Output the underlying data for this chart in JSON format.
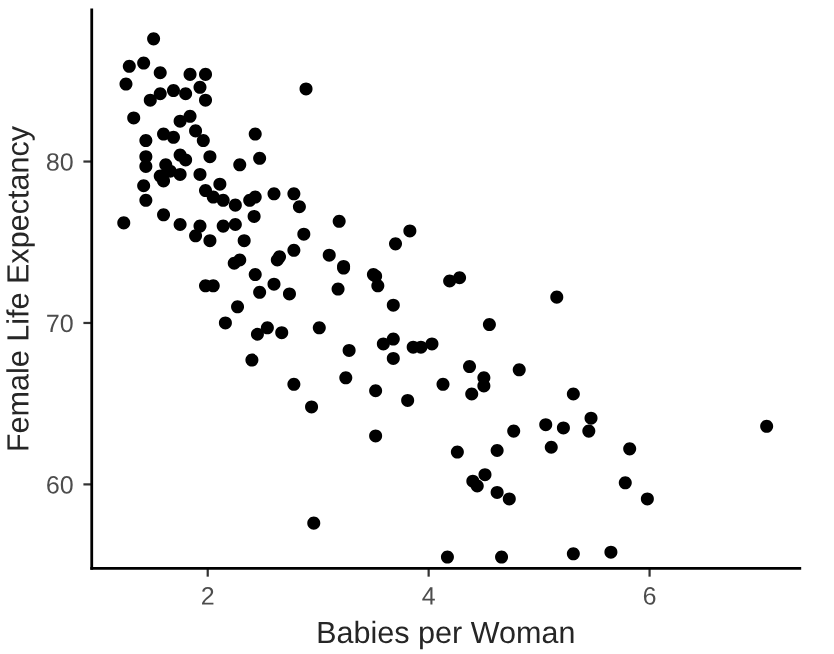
{
  "chart_data": {
    "type": "scatter",
    "xlabel": "Babies per Woman",
    "ylabel": "Female Life Expectancy",
    "xlim": [
      0.95,
      7.36
    ],
    "ylim": [
      54.8,
      89.4
    ],
    "xticks": [
      2,
      4,
      6
    ],
    "yticks": [
      60,
      70,
      80
    ],
    "marker": "circle",
    "series": [
      {
        "color": "#000000",
        "x": [
          1.51,
          1.29,
          1.42,
          1.26,
          1.57,
          1.48,
          1.57,
          1.69,
          1.8,
          1.84,
          1.98,
          1.93,
          1.98,
          2.89,
          1.33,
          1.75,
          1.84,
          1.89,
          1.69,
          1.44,
          1.6,
          1.96,
          2.43,
          1.44,
          1.62,
          1.75,
          1.8,
          2.02,
          2.29,
          2.47,
          1.42,
          1.44,
          1.6,
          1.66,
          1.75,
          1.93,
          2.11,
          1.98,
          2.05,
          2.14,
          2.25,
          2.38,
          2.43,
          2.6,
          2.78,
          2.83,
          2.42,
          2.25,
          2.14,
          1.93,
          1.75,
          1.6,
          1.24,
          3.19,
          2.87,
          1.89,
          2.02,
          2.33,
          2.29,
          2.43,
          2.65,
          2.78,
          3.1,
          3.23,
          3.5,
          1.44,
          1.57,
          2.24,
          2.63,
          3.23,
          1.98,
          2.05,
          2.47,
          2.6,
          2.74,
          3.18,
          3.52,
          2.27,
          2.16,
          2.45,
          2.54,
          2.67,
          3.01,
          3.28,
          2.4,
          2.78,
          3.25,
          2.94,
          3.52,
          3.52,
          2.96,
          3.83,
          3.7,
          3.54,
          4.19,
          4.28,
          5.16,
          3.68,
          4.55,
          3.59,
          3.68,
          3.86,
          3.93,
          4.03,
          3.68,
          4.37,
          4.82,
          4.13,
          4.5,
          4.5,
          4.39,
          5.31,
          3.81,
          5.47,
          5.45,
          5.06,
          5.22,
          4.77,
          7.06,
          5.11,
          5.82,
          4.26,
          4.62,
          4.51,
          4.4,
          4.44,
          5.78,
          4.62,
          4.73,
          5.98,
          4.17,
          4.66,
          5.31,
          5.65
        ],
        "values": [
          87.6,
          85.9,
          86.1,
          84.8,
          85.5,
          83.8,
          84.2,
          84.4,
          84.2,
          85.4,
          85.4,
          84.6,
          83.8,
          84.5,
          82.7,
          82.5,
          82.8,
          81.9,
          81.5,
          81.3,
          81.7,
          81.3,
          81.7,
          80.3,
          79.8,
          80.4,
          80.1,
          80.3,
          79.8,
          80.2,
          78.5,
          77.6,
          78.8,
          79.4,
          79.2,
          79.2,
          78.6,
          78.2,
          77.8,
          77.6,
          77.3,
          77.6,
          77.8,
          78.0,
          78.0,
          77.2,
          76.6,
          76.1,
          76.0,
          76.0,
          76.1,
          76.7,
          76.2,
          76.3,
          75.5,
          75.4,
          75.1,
          75.1,
          73.9,
          73.0,
          74.1,
          74.5,
          74.2,
          73.5,
          73.0,
          79.7,
          79.1,
          73.7,
          73.9,
          73.4,
          72.3,
          72.3,
          71.9,
          72.4,
          71.8,
          72.1,
          72.9,
          71.0,
          70.0,
          69.3,
          69.7,
          69.4,
          69.7,
          68.3,
          67.7,
          66.2,
          66.6,
          64.8,
          65.8,
          63.0,
          57.6,
          75.7,
          74.9,
          72.3,
          72.6,
          72.8,
          71.6,
          71.1,
          69.9,
          68.7,
          69.0,
          68.5,
          68.5,
          68.7,
          67.8,
          67.3,
          67.1,
          66.2,
          66.6,
          66.1,
          65.6,
          65.6,
          65.2,
          64.1,
          63.3,
          63.7,
          63.5,
          63.3,
          63.6,
          62.3,
          62.2,
          62.0,
          62.1,
          60.6,
          60.2,
          59.9,
          60.1,
          59.5,
          59.1,
          59.1,
          55.5,
          55.5,
          55.7,
          55.8
        ]
      }
    ]
  }
}
